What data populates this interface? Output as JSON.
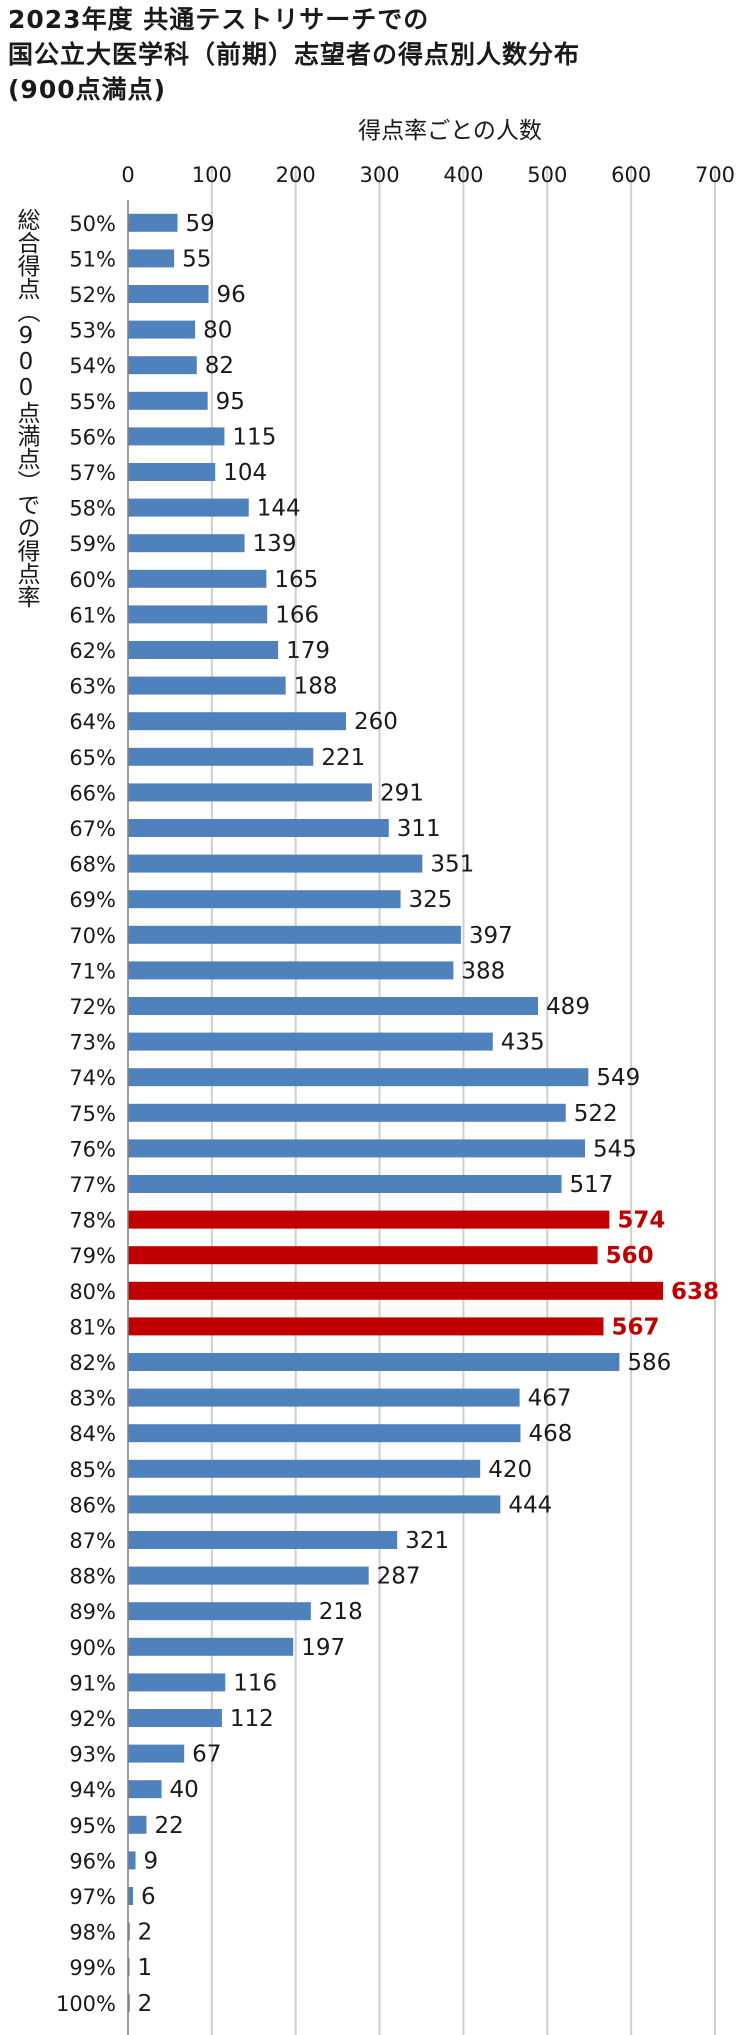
{
  "title_lines": [
    "2023年度 共通テストリサーチでの",
    "国公立大医学科（前期）志望者の得点別人数分布",
    "(900点満点)"
  ],
  "chart_data": {
    "type": "bar",
    "orientation": "horizontal",
    "title": "2023年度 共通テストリサーチでの 国公立大医学科（前期）志望者の得点別人数分布 (900点満点)",
    "xlabel": "得点率ごとの人数",
    "ylabel": "総合得点（900点満点）での得点率",
    "xlim": [
      0,
      700
    ],
    "xticks": [
      0,
      100,
      200,
      300,
      400,
      500,
      600,
      700
    ],
    "grid": "vertical",
    "categories": [
      "50%",
      "51%",
      "52%",
      "53%",
      "54%",
      "55%",
      "56%",
      "57%",
      "58%",
      "59%",
      "60%",
      "61%",
      "62%",
      "63%",
      "64%",
      "65%",
      "66%",
      "67%",
      "68%",
      "69%",
      "70%",
      "71%",
      "72%",
      "73%",
      "74%",
      "75%",
      "76%",
      "77%",
      "78%",
      "79%",
      "80%",
      "81%",
      "82%",
      "83%",
      "84%",
      "85%",
      "86%",
      "87%",
      "88%",
      "89%",
      "90%",
      "91%",
      "92%",
      "93%",
      "94%",
      "95%",
      "96%",
      "97%",
      "98%",
      "99%",
      "100%"
    ],
    "values": [
      59,
      55,
      96,
      80,
      82,
      95,
      115,
      104,
      144,
      139,
      165,
      166,
      179,
      188,
      260,
      221,
      291,
      311,
      351,
      325,
      397,
      388,
      489,
      435,
      549,
      522,
      545,
      517,
      574,
      560,
      638,
      567,
      586,
      467,
      468,
      420,
      444,
      321,
      287,
      218,
      197,
      116,
      112,
      67,
      40,
      22,
      9,
      6,
      2,
      1,
      2
    ],
    "highlighted_categories": [
      "78%",
      "79%",
      "80%",
      "81%"
    ],
    "colors": {
      "normal": "#4f81bd",
      "highlight": "#c00000",
      "grid": "#cfcfcf",
      "axis": "#808080"
    }
  }
}
